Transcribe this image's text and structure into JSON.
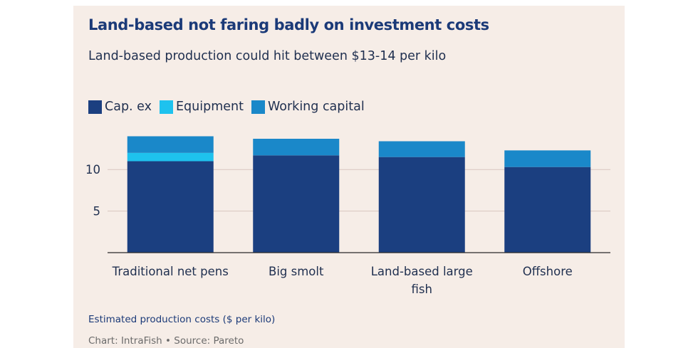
{
  "chart_data": {
    "type": "bar",
    "stacked": true,
    "title": "Land-based not faring badly on investment costs",
    "subtitle": "Land-based production could hit between $13-14 per kilo",
    "footnote": "Estimated production costs ($ per kilo)",
    "credit": "Chart: IntraFish • Source: Pareto",
    "categories": [
      [
        "Traditional net pens"
      ],
      [
        "Big smolt"
      ],
      [
        "Land-based large",
        "fish"
      ],
      [
        "Offshore"
      ]
    ],
    "series": [
      {
        "name": "Cap. ex",
        "color": "#1b3f80",
        "values": [
          11.0,
          11.7,
          11.5,
          10.3
        ]
      },
      {
        "name": "Equipment",
        "color": "#1ec2ee",
        "values": [
          1.0,
          0.0,
          0.0,
          0.0
        ]
      },
      {
        "name": "Working capital",
        "color": "#1a88c9",
        "values": [
          2.0,
          2.0,
          1.9,
          2.0
        ]
      }
    ],
    "yticks": [
      5,
      10
    ],
    "ylim": [
      0,
      15
    ],
    "grid": true,
    "legend_position": "top-left"
  }
}
